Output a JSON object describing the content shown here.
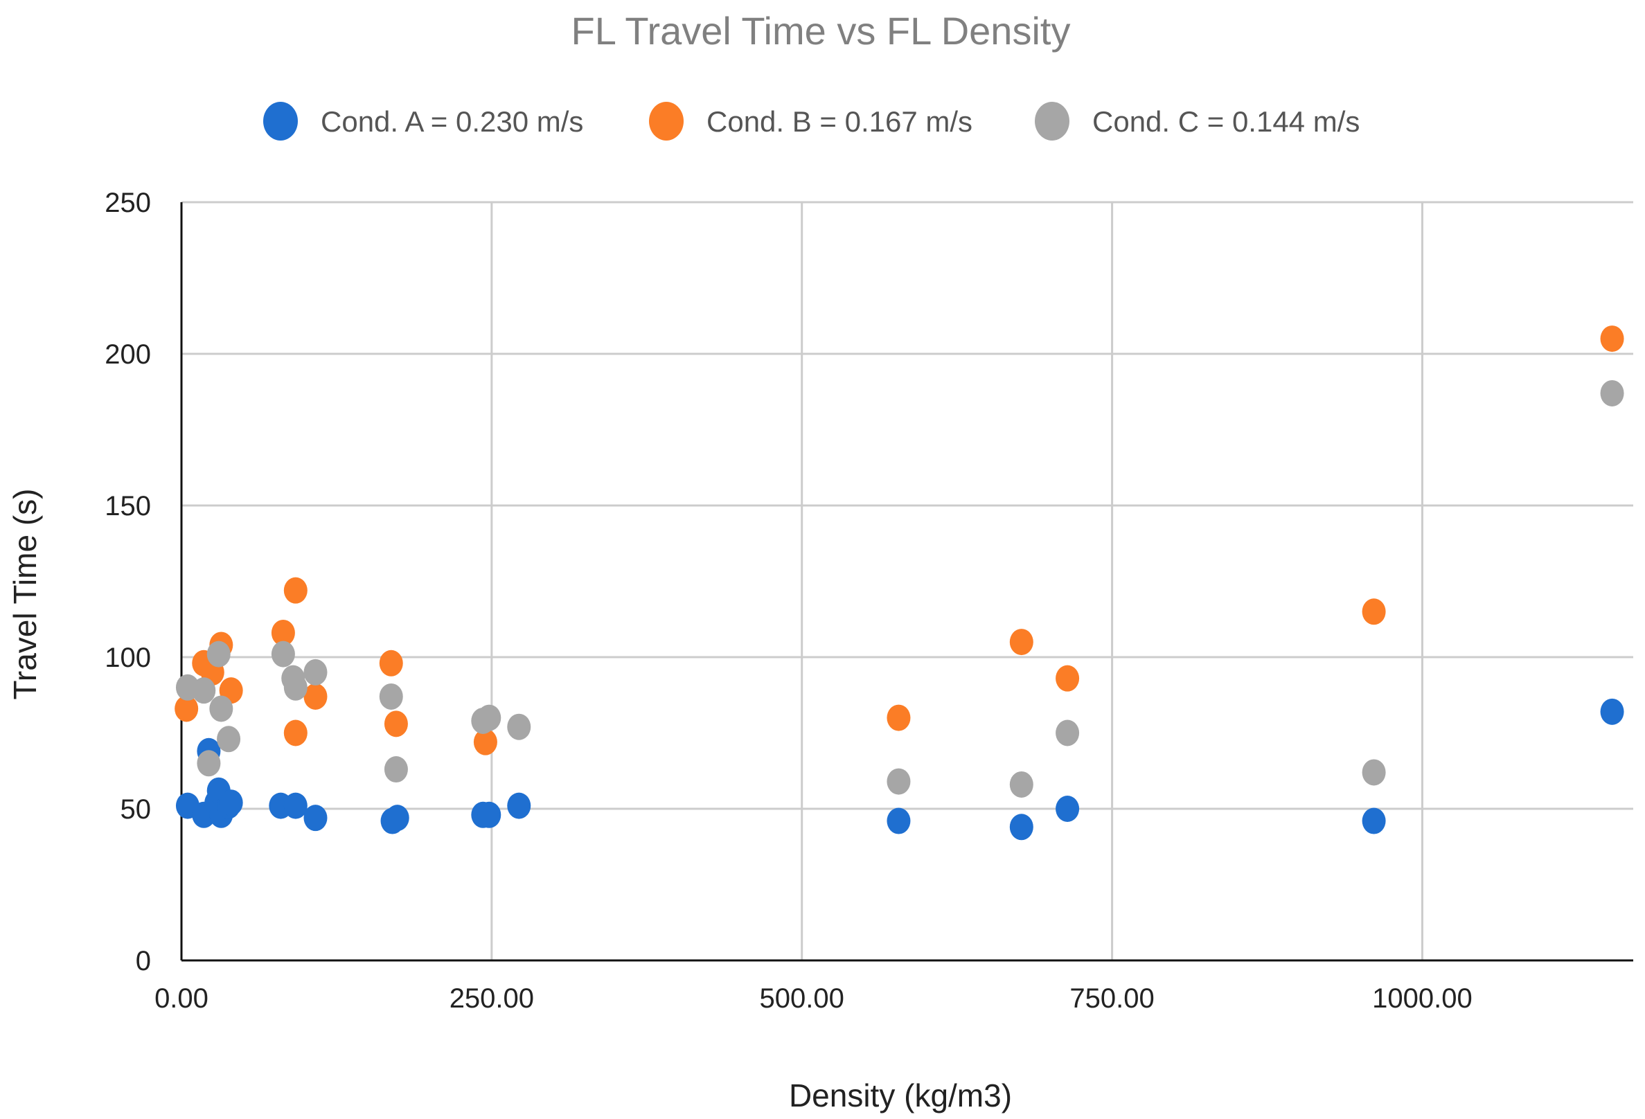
{
  "chart_data": {
    "type": "scatter",
    "title": "FL Travel Time vs FL Density",
    "xlabel": "Density (kg/m3)",
    "ylabel": "Travel Time  (s)",
    "xlim": [
      0,
      1170
    ],
    "ylim": [
      0,
      250
    ],
    "x_ticks": [
      "0.00",
      "250.00",
      "500.00",
      "750.00",
      "1000.00"
    ],
    "x_tick_values": [
      0,
      250,
      500,
      750,
      1000
    ],
    "y_ticks": [
      "0",
      "50",
      "100",
      "150",
      "200",
      "250"
    ],
    "y_tick_values": [
      0,
      50,
      100,
      150,
      200,
      250
    ],
    "grid": true,
    "legend_position": "top",
    "series": [
      {
        "name": "Cond. A = 0.230 m/s",
        "color": "#1f6fd0",
        "points": [
          [
            5,
            51
          ],
          [
            18,
            48
          ],
          [
            22,
            69
          ],
          [
            28,
            52
          ],
          [
            30,
            56
          ],
          [
            32,
            48
          ],
          [
            38,
            51
          ],
          [
            40,
            52
          ],
          [
            80,
            51
          ],
          [
            92,
            51
          ],
          [
            108,
            47
          ],
          [
            170,
            46
          ],
          [
            174,
            47
          ],
          [
            243,
            48
          ],
          [
            248,
            48
          ],
          [
            272,
            51
          ],
          [
            578,
            46
          ],
          [
            677,
            44
          ],
          [
            714,
            50
          ],
          [
            961,
            46
          ],
          [
            1153,
            82
          ]
        ]
      },
      {
        "name": "Cond. B = 0.167 m/s",
        "color": "#fb7d26",
        "points": [
          [
            4,
            83
          ],
          [
            18,
            98
          ],
          [
            25,
            95
          ],
          [
            32,
            104
          ],
          [
            40,
            89
          ],
          [
            82,
            108
          ],
          [
            92,
            122
          ],
          [
            92,
            75
          ],
          [
            108,
            87
          ],
          [
            169,
            98
          ],
          [
            173,
            78
          ],
          [
            245,
            72
          ],
          [
            578,
            80
          ],
          [
            677,
            105
          ],
          [
            714,
            93
          ],
          [
            961,
            115
          ],
          [
            1153,
            205
          ]
        ]
      },
      {
        "name": "Cond. C = 0.144 m/s",
        "color": "#a6a6a6",
        "points": [
          [
            5,
            90
          ],
          [
            18,
            89
          ],
          [
            22,
            65
          ],
          [
            30,
            101
          ],
          [
            32,
            83
          ],
          [
            38,
            73
          ],
          [
            82,
            101
          ],
          [
            90,
            93
          ],
          [
            92,
            90
          ],
          [
            108,
            95
          ],
          [
            169,
            87
          ],
          [
            173,
            63
          ],
          [
            243,
            79
          ],
          [
            248,
            80
          ],
          [
            272,
            77
          ],
          [
            578,
            59
          ],
          [
            677,
            58
          ],
          [
            714,
            75
          ],
          [
            961,
            62
          ],
          [
            1153,
            187
          ]
        ]
      }
    ]
  }
}
